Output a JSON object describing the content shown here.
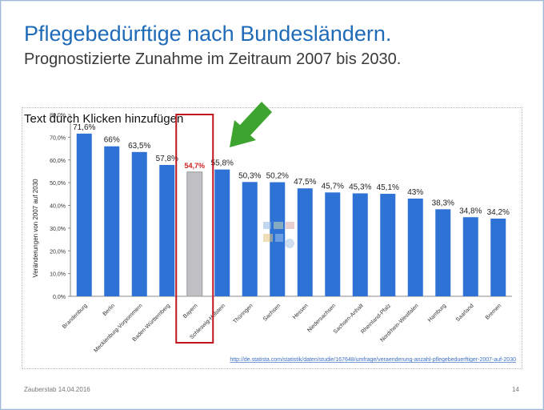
{
  "slide": {
    "title": "Pflegebedürftige nach Bundesländern.",
    "subtitle": "Prognostizierte Zunahme im Zeitraum 2007 bis 2030.",
    "placeholder_text": "Text durch Klicken hinzufügen",
    "source_link": "http://de.statista.com/statistik/daten/studie/167648/umfrage/veraenderung-anzahl-pflegebeduerftiger-2007-auf-2030",
    "footer_left": "Zauberstab 14.04.2016",
    "page_number": "14"
  },
  "colors": {
    "bar": "#2e72d6",
    "highlight_bar": "#c0c0c4",
    "highlight_label": "#d42020",
    "highlight_box": "#c0141e",
    "arrow": "#3da52f",
    "title": "#1f6bb8"
  },
  "chart_data": {
    "type": "bar",
    "ylabel": "Veränderungen von 2007 auf 2030",
    "ylim": [
      0,
      80
    ],
    "yticks": [
      "0,0%",
      "10,0%",
      "20,0%",
      "30,0%",
      "40,0%",
      "50,0%",
      "60,0%",
      "70,0%",
      "80,0%"
    ],
    "categories": [
      "Brandenburg",
      "Berlin",
      "Mecklenburg-Vorpommern",
      "Baden-Württemberg",
      "Bayern",
      "Schleswig-Holstein",
      "Thüringen",
      "Sachsen",
      "Hessen",
      "Niedersachsen",
      "Sachsen-Anhalt",
      "Rheinland-Pfalz",
      "Nordrhein-Westfalen",
      "Hamburg",
      "Saarland",
      "Bremen"
    ],
    "values": [
      71.6,
      66,
      63.5,
      57.8,
      54.7,
      55.8,
      50.3,
      50.2,
      47.5,
      45.7,
      45.3,
      45.1,
      43,
      38.3,
      34.8,
      34.2
    ],
    "labels": [
      "71,6%",
      "66%",
      "63,5%",
      "57,8%",
      "54,7%",
      "55,8%",
      "50,3%",
      "50,2%",
      "47,5%",
      "45,7%",
      "45,3%",
      "45,1%",
      "43%",
      "38,3%",
      "34,8%",
      "34,2%"
    ],
    "highlight": "Bayern",
    "grid": false,
    "legend": "none"
  }
}
